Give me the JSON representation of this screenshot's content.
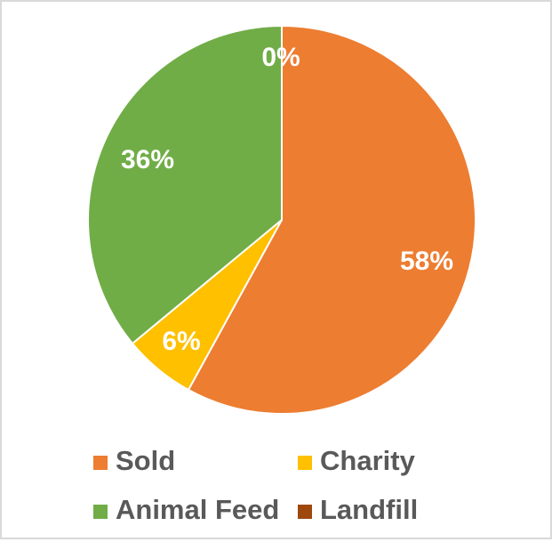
{
  "chart_data": {
    "type": "pie",
    "categories": [
      "Sold",
      "Charity",
      "Animal Feed",
      "Landfill"
    ],
    "values": [
      58,
      6,
      36,
      0
    ],
    "value_labels": [
      "58%",
      "6%",
      "36%",
      "0%"
    ],
    "colors": [
      "#ED7D31",
      "#FFC000",
      "#70AD47",
      "#9E480E"
    ],
    "title": "",
    "legend": {
      "placement": "bottom",
      "entries": [
        "Sold",
        "Charity",
        "Animal Feed",
        "Landfill"
      ]
    }
  }
}
